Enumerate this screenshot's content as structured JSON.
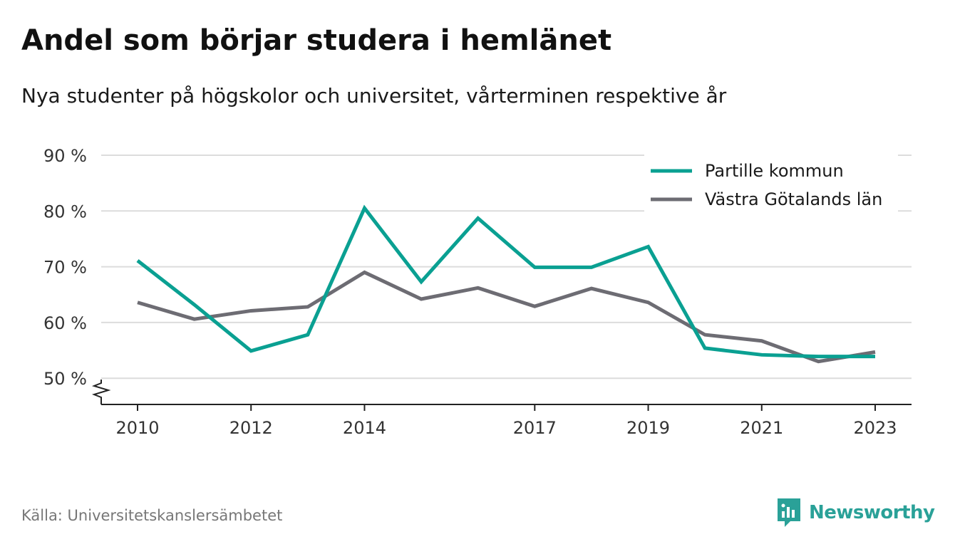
{
  "title": "Andel som börjar studera i hemlänet",
  "subtitle": "Nya studenter på högskolor och universitet, vårterminen respektive år",
  "source": "Källa: Universitetskanslersämbetet",
  "brand": {
    "name": "Newsworthy",
    "icon": "newsworthy-logo-icon",
    "color": "#2aa198"
  },
  "chart_data": {
    "type": "line",
    "x": [
      2010,
      2011,
      2012,
      2013,
      2014,
      2015,
      2016,
      2017,
      2018,
      2019,
      2020,
      2021,
      2022,
      2023
    ],
    "x_tick_labels": [
      "2010",
      "2012",
      "2014",
      "2017",
      "2019",
      "2021",
      "2023"
    ],
    "y_tick_labels": [
      "90 %",
      "80 %",
      "70 %",
      "60 %",
      "50 %"
    ],
    "y_ticks": [
      90,
      80,
      70,
      60,
      50
    ],
    "ylim": [
      45.3,
      90
    ],
    "y_axis_break": true,
    "grid": true,
    "legend_position": "top-right",
    "series": [
      {
        "name": "Partille kommun",
        "color": "#0aa092",
        "values": [
          71.1,
          63.2,
          54.9,
          57.8,
          80.5,
          67.3,
          78.7,
          69.9,
          69.9,
          73.6,
          55.4,
          54.2,
          53.9,
          53.9
        ]
      },
      {
        "name": "Västra Götalands län",
        "color": "#6d6c73",
        "values": [
          63.6,
          60.6,
          62.1,
          62.8,
          69.0,
          64.2,
          66.2,
          62.9,
          66.1,
          63.6,
          57.8,
          56.7,
          53.0,
          54.7
        ]
      }
    ]
  }
}
